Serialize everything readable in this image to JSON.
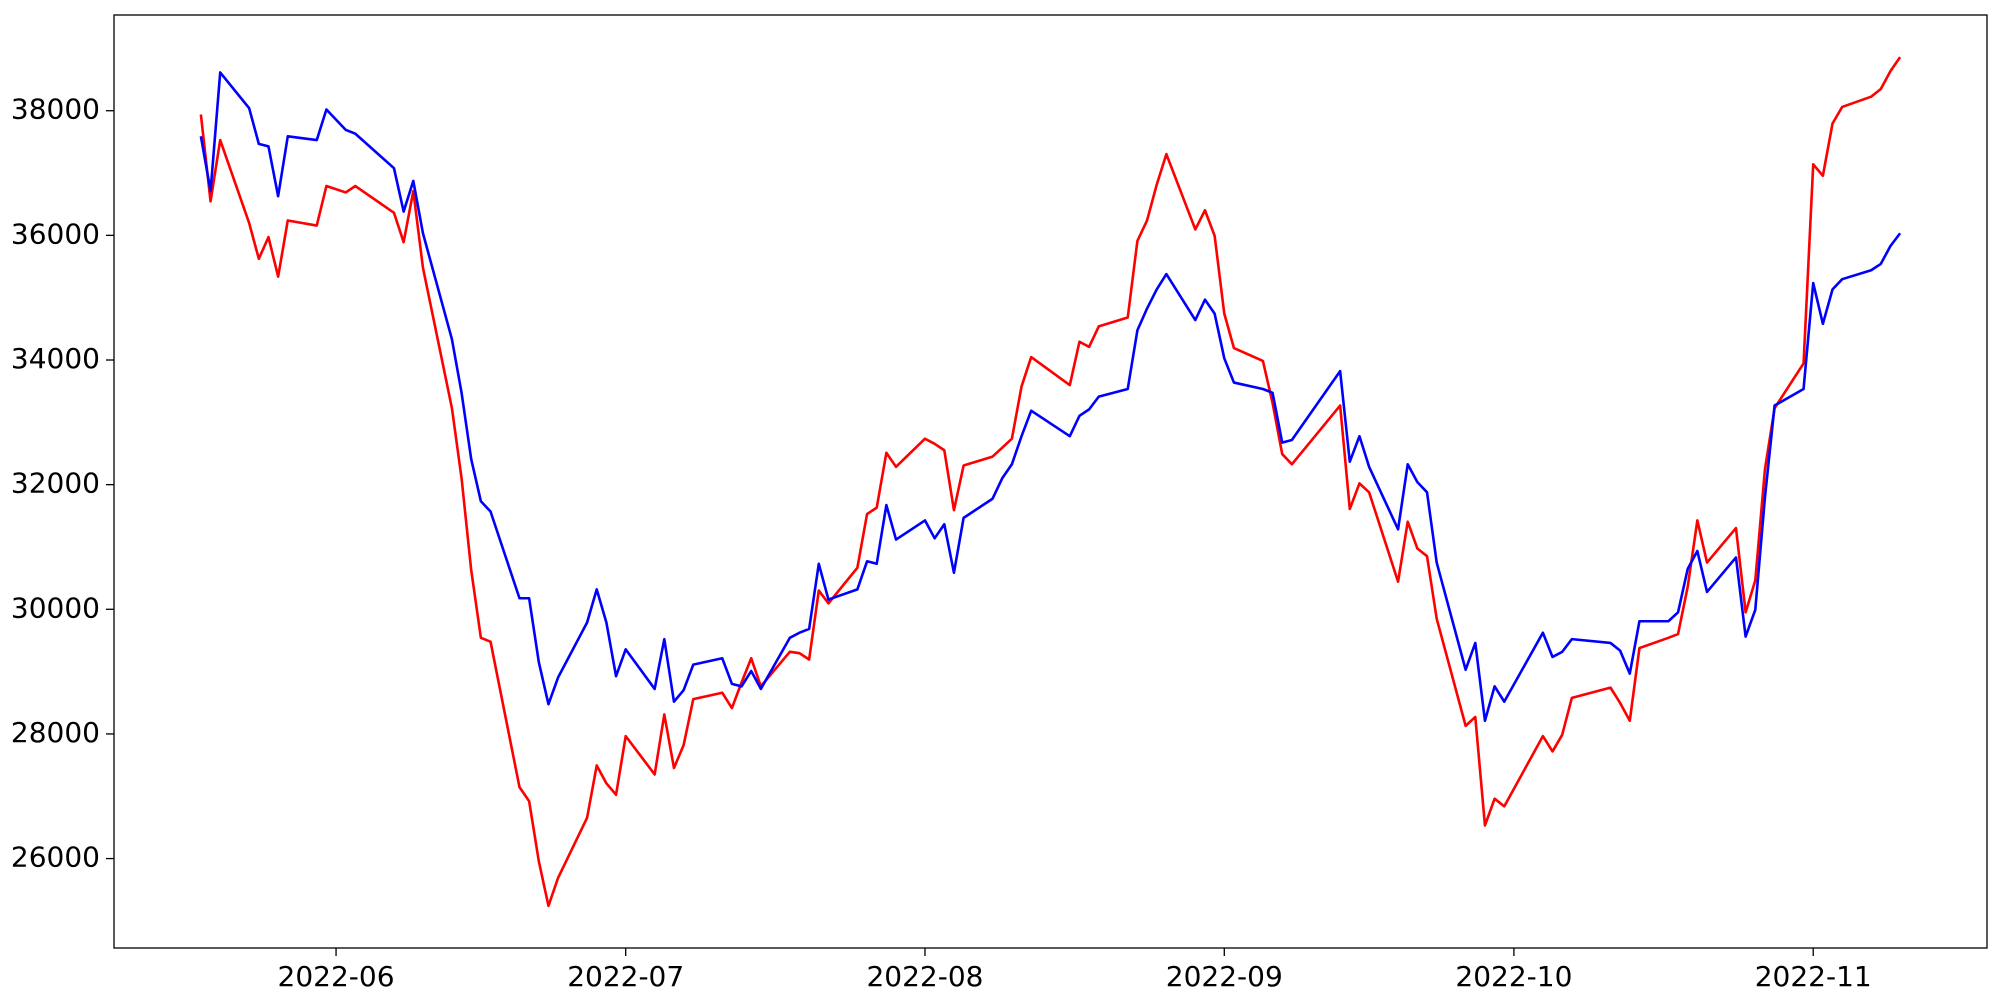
{
  "chart_data": {
    "type": "line",
    "x": [
      "2022-05-18",
      "2022-05-19",
      "2022-05-20",
      "2022-05-23",
      "2022-05-24",
      "2022-05-25",
      "2022-05-26",
      "2022-05-27",
      "2022-05-30",
      "2022-05-31",
      "2022-06-02",
      "2022-06-03",
      "2022-06-07",
      "2022-06-08",
      "2022-06-09",
      "2022-06-10",
      "2022-06-13",
      "2022-06-14",
      "2022-06-15",
      "2022-06-16",
      "2022-06-17",
      "2022-06-20",
      "2022-06-21",
      "2022-06-22",
      "2022-06-23",
      "2022-06-24",
      "2022-06-27",
      "2022-06-28",
      "2022-06-29",
      "2022-06-30",
      "2022-07-01",
      "2022-07-04",
      "2022-07-05",
      "2022-07-06",
      "2022-07-07",
      "2022-07-08",
      "2022-07-11",
      "2022-07-12",
      "2022-07-13",
      "2022-07-14",
      "2022-07-15",
      "2022-07-18",
      "2022-07-19",
      "2022-07-20",
      "2022-07-21",
      "2022-07-22",
      "2022-07-25",
      "2022-07-26",
      "2022-07-27",
      "2022-07-28",
      "2022-07-29",
      "2022-08-01",
      "2022-08-02",
      "2022-08-03",
      "2022-08-04",
      "2022-08-05",
      "2022-08-08",
      "2022-08-09",
      "2022-08-10",
      "2022-08-11",
      "2022-08-12",
      "2022-08-16",
      "2022-08-17",
      "2022-08-18",
      "2022-08-19",
      "2022-08-22",
      "2022-08-23",
      "2022-08-24",
      "2022-08-25",
      "2022-08-26",
      "2022-08-29",
      "2022-08-30",
      "2022-08-31",
      "2022-09-01",
      "2022-09-02",
      "2022-09-05",
      "2022-09-06",
      "2022-09-07",
      "2022-09-08",
      "2022-09-13",
      "2022-09-14",
      "2022-09-15",
      "2022-09-16",
      "2022-09-19",
      "2022-09-20",
      "2022-09-21",
      "2022-09-22",
      "2022-09-23",
      "2022-09-26",
      "2022-09-27",
      "2022-09-28",
      "2022-09-29",
      "2022-09-30",
      "2022-10-04",
      "2022-10-05",
      "2022-10-06",
      "2022-10-07",
      "2022-10-11",
      "2022-10-12",
      "2022-10-13",
      "2022-10-14",
      "2022-10-17",
      "2022-10-18",
      "2022-10-19",
      "2022-10-20",
      "2022-10-21",
      "2022-10-24",
      "2022-10-25",
      "2022-10-26",
      "2022-10-27",
      "2022-10-28",
      "2022-10-31",
      "2022-11-01",
      "2022-11-02",
      "2022-11-03",
      "2022-11-04",
      "2022-11-07",
      "2022-11-08",
      "2022-11-09",
      "2022-11-10"
    ],
    "series": [
      {
        "color": "#ff0000",
        "values": [
          37939,
          36546,
          37529,
          36198,
          35624,
          35972,
          35338,
          36239,
          36157,
          36792,
          36689,
          36792,
          36362,
          35891,
          36710,
          35481,
          33228,
          32102,
          30627,
          29542,
          29480,
          27146,
          26920,
          25958,
          25241,
          25692,
          26654,
          27494,
          27207,
          27023,
          27965,
          27350,
          28313,
          27453,
          27821,
          28559,
          28661,
          28415,
          28825,
          29214,
          28763,
          29317,
          29296,
          29194,
          30300,
          30095,
          30668,
          31528,
          31631,
          32511,
          32286,
          32737,
          32655,
          32552,
          31590,
          32307,
          32450,
          32593,
          32737,
          33576,
          34047,
          33597,
          34293,
          34211,
          34539,
          34682,
          35911,
          36239,
          36812,
          37304,
          36095,
          36403,
          35993,
          34744,
          34191,
          33986,
          33310,
          32491,
          32327,
          33269,
          31610,
          32020,
          31877,
          30443,
          31405,
          30975,
          30852,
          29849,
          28129,
          28272,
          26531,
          26961,
          26838,
          27965,
          27719,
          27986,
          28579,
          28743,
          28497,
          28211,
          29378,
          29542,
          29603,
          30361,
          31426,
          30750,
          31303,
          29951,
          30464,
          32245,
          33228,
          33945,
          37140,
          36956,
          37795,
          38061,
          38225,
          38348,
          38635,
          38860
        ]
      },
      {
        "color": "#0000ff",
        "values": [
          37590,
          36710,
          38614,
          38041,
          37468,
          37427,
          36628,
          37590,
          37529,
          38020,
          37693,
          37631,
          37078,
          36382,
          36874,
          36034,
          34334,
          33474,
          32409,
          31733,
          31569,
          30177,
          30177,
          29153,
          28477,
          28907,
          29788,
          30320,
          29788,
          28927,
          29357,
          28722,
          29521,
          28518,
          28702,
          29112,
          29214,
          28804,
          28763,
          29009,
          28722,
          29542,
          29624,
          29685,
          30730,
          30156,
          30320,
          30770,
          30730,
          31672,
          31119,
          31426,
          31139,
          31364,
          30586,
          31467,
          31774,
          32102,
          32327,
          32778,
          33187,
          32778,
          33105,
          33208,
          33412,
          33535,
          34477,
          34826,
          35133,
          35379,
          34641,
          34969,
          34744,
          34027,
          33638,
          33535,
          33474,
          32675,
          32716,
          33822,
          32368,
          32778,
          32286,
          31283,
          32327,
          32040,
          31877,
          30750,
          29030,
          29460,
          28211,
          28764,
          28518,
          29624,
          29235,
          29317,
          29521,
          29460,
          29337,
          28968,
          29808,
          29808,
          29951,
          30648,
          30935,
          30279,
          30832,
          29562,
          29992,
          31795,
          33269,
          33535,
          35235,
          34580,
          35133,
          35297,
          35440,
          35542,
          35829,
          36034
        ]
      }
    ],
    "xlim": [
      "2022-05-09",
      "2022-11-19"
    ],
    "xticks": [
      "2022-06",
      "2022-07",
      "2022-08",
      "2022-09",
      "2022-10",
      "2022-11"
    ],
    "ylim": [
      24565,
      39536
    ],
    "yticks": [
      26000,
      28000,
      30000,
      32000,
      34000,
      36000,
      38000
    ],
    "grid": false
  }
}
